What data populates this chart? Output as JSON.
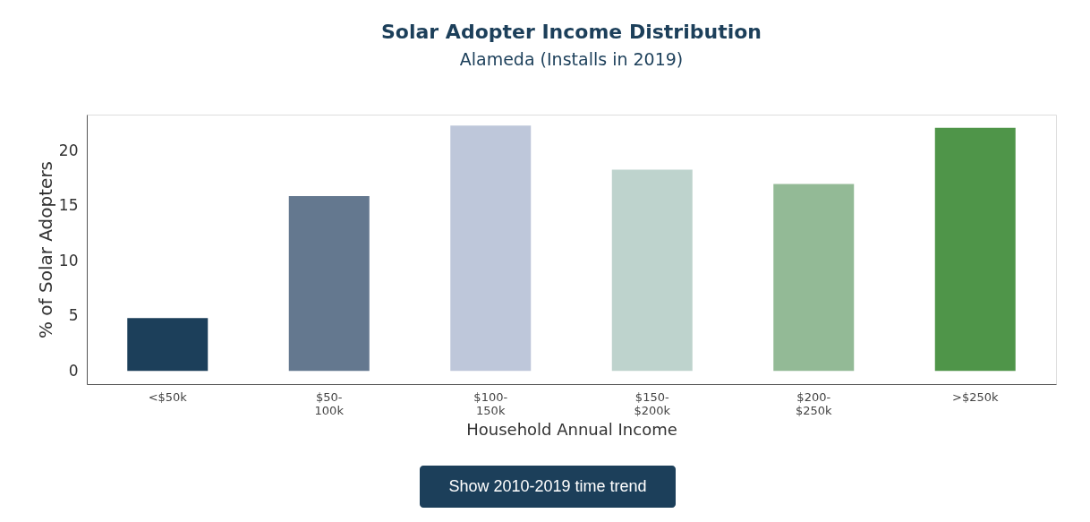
{
  "chart_data": {
    "type": "bar",
    "title": "Solar Adopter Income Distribution",
    "subtitle": "Alameda (Installs in 2019)",
    "xlabel": "Household Annual Income",
    "ylabel": "% of Solar Adopters",
    "categories": [
      "<$50k",
      "$50-100k",
      "$100-150k",
      "$150-$200k",
      "$200-$250k",
      ">$250k"
    ],
    "values": [
      4.8,
      15.9,
      22.3,
      18.3,
      17.0,
      22.1
    ],
    "colors": [
      "#1c3f5a",
      "#64788f",
      "#bec7da",
      "#bed3cd",
      "#93ba96",
      "#4f9549"
    ],
    "ylim": [
      -1.2,
      23.3
    ],
    "yticks": [
      0,
      5,
      10,
      15,
      20
    ],
    "annotations": [
      "Show 2010-2019 time trend"
    ]
  }
}
